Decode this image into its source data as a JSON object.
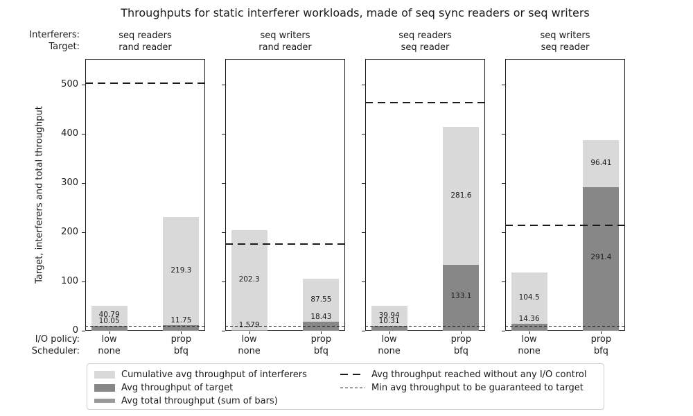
{
  "title": "Throughputs for static interferer workloads, made of seq sync readers or seq writers",
  "ylabel": "Target, interferers and total throughput",
  "labels": {
    "interferers_row": "Interferers:",
    "target_row": "Target:",
    "io_policy_row": "I/O policy:",
    "scheduler_row": "Scheduler:"
  },
  "yticks": [
    0,
    100,
    200,
    300,
    400,
    500
  ],
  "colors": {
    "interferers_bar": "#d9d9d9",
    "target_bar": "#878787",
    "total_bar": "#9a9a9a",
    "line": "#1a1a1a",
    "axis": "#1a1a1a"
  },
  "legend": {
    "items": [
      {
        "label": "Cumulative avg throughput of interferers",
        "swatch": "interferers"
      },
      {
        "label": "Avg throughput of target",
        "swatch": "target"
      },
      {
        "label": "Avg total throughput (sum of bars)",
        "swatch": "total"
      }
    ],
    "line_items": [
      {
        "label": "Avg throughput reached without any I/O control",
        "style": "long-dash"
      },
      {
        "label": "Min avg throughput to be guaranteed to target",
        "style": "short-dash"
      }
    ]
  },
  "chart_data": {
    "type": "bar",
    "stacked": true,
    "ylim": [
      0,
      552
    ],
    "ylabel": "Target, interferers and total throughput",
    "grid": false,
    "legend_position": "bottom",
    "panels": [
      {
        "interferers": "seq readers",
        "target": "rand reader",
        "no_control": 503,
        "min_guaranteed": 10,
        "bars": [
          {
            "policy": "low",
            "scheduler": "none",
            "target": 10.05,
            "interferers": 40.79
          },
          {
            "policy": "prop",
            "scheduler": "bfq",
            "target": 11.75,
            "interferers": 219.3
          }
        ]
      },
      {
        "interferers": "seq writers",
        "target": "rand reader",
        "no_control": 176,
        "min_guaranteed": 10,
        "bars": [
          {
            "policy": "low",
            "scheduler": "none",
            "target": 1.579,
            "interferers": 202.3
          },
          {
            "policy": "prop",
            "scheduler": "bfq",
            "target": 18.43,
            "interferers": 87.55
          }
        ]
      },
      {
        "interferers": "seq readers",
        "target": "seq reader",
        "no_control": 464,
        "min_guaranteed": 10,
        "bars": [
          {
            "policy": "low",
            "scheduler": "none",
            "target": 10.31,
            "interferers": 39.94
          },
          {
            "policy": "prop",
            "scheduler": "bfq",
            "target": 133.1,
            "interferers": 281.6
          }
        ]
      },
      {
        "interferers": "seq writers",
        "target": "seq reader",
        "no_control": 214,
        "min_guaranteed": 10,
        "bars": [
          {
            "policy": "low",
            "scheduler": "none",
            "target": 14.36,
            "interferers": 104.5
          },
          {
            "policy": "prop",
            "scheduler": "bfq",
            "target": 291.4,
            "interferers": 96.41
          }
        ]
      }
    ]
  }
}
